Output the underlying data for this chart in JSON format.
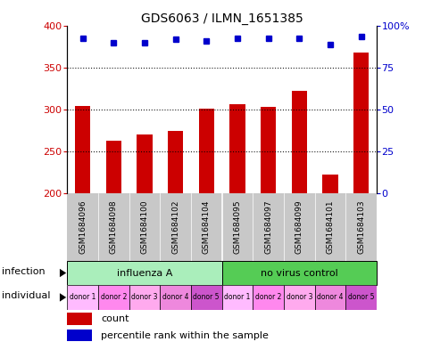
{
  "title": "GDS6063 / ILMN_1651385",
  "samples": [
    "GSM1684096",
    "GSM1684098",
    "GSM1684100",
    "GSM1684102",
    "GSM1684104",
    "GSM1684095",
    "GSM1684097",
    "GSM1684099",
    "GSM1684101",
    "GSM1684103"
  ],
  "counts": [
    305,
    263,
    270,
    275,
    301,
    307,
    304,
    323,
    222,
    368
  ],
  "percentiles": [
    93,
    90,
    90,
    92,
    91,
    93,
    93,
    93,
    89,
    94
  ],
  "ylim_left": [
    200,
    400
  ],
  "ylim_right": [
    0,
    100
  ],
  "yticks_left": [
    200,
    250,
    300,
    350,
    400
  ],
  "yticks_right": [
    0,
    25,
    50,
    75,
    100
  ],
  "bar_color": "#cc0000",
  "dot_color": "#0000cc",
  "infection_groups": [
    {
      "label": "influenza A",
      "start": 0,
      "end": 5,
      "color": "#aaeebb"
    },
    {
      "label": "no virus control",
      "start": 5,
      "end": 10,
      "color": "#55cc55"
    }
  ],
  "donors": [
    "donor 1",
    "donor 2",
    "donor 3",
    "donor 4",
    "donor 5",
    "donor 1",
    "donor 2",
    "donor 3",
    "donor 4",
    "donor 5"
  ],
  "donor_colors": [
    "#ffbbff",
    "#ff88ee",
    "#ffaaee",
    "#ee88dd",
    "#cc55cc",
    "#ffbbff",
    "#ff88ee",
    "#ffaaee",
    "#ee88dd",
    "#cc55cc"
  ],
  "sample_bg_color": "#c8c8c8",
  "bar_color_legend": "#cc0000",
  "dot_color_legend": "#0000cc"
}
